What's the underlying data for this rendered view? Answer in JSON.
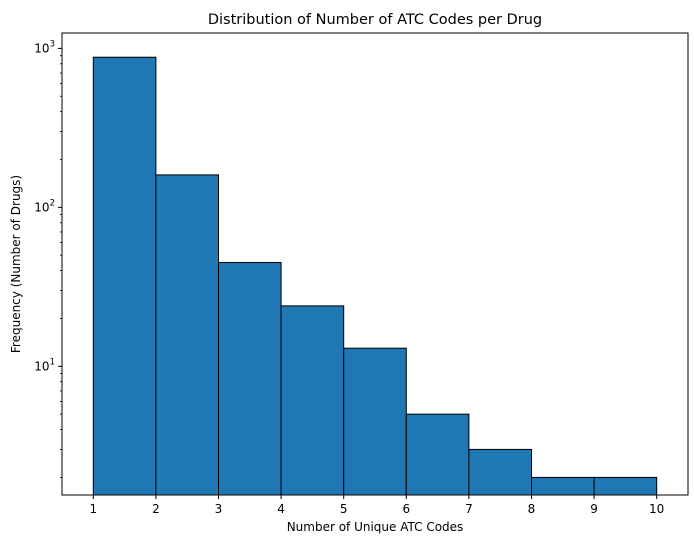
{
  "chart_data": {
    "type": "bar",
    "subtype": "histogram",
    "title": "Distribution of Number of ATC Codes per Drug",
    "xlabel": "Number of Unique ATC Codes",
    "ylabel": "Frequency (Number of Drugs)",
    "yscale": "log",
    "ylim": [
      1.55,
      1250
    ],
    "xlim": [
      0.5,
      10.5
    ],
    "x_ticks": [
      "1",
      "2",
      "3",
      "4",
      "5",
      "6",
      "7",
      "8",
      "9",
      "10"
    ],
    "y_ticks": [
      {
        "base": "10",
        "exp": "1",
        "value": 10
      },
      {
        "base": "10",
        "exp": "2",
        "value": 100
      },
      {
        "base": "10",
        "exp": "3",
        "value": 1000
      }
    ],
    "bins": [
      {
        "start": 1,
        "end": 2,
        "value": 880
      },
      {
        "start": 2,
        "end": 3,
        "value": 160
      },
      {
        "start": 3,
        "end": 4,
        "value": 45
      },
      {
        "start": 4,
        "end": 5,
        "value": 24
      },
      {
        "start": 5,
        "end": 6,
        "value": 13
      },
      {
        "start": 6,
        "end": 7,
        "value": 5
      },
      {
        "start": 7,
        "end": 8,
        "value": 3
      },
      {
        "start": 8,
        "end": 9,
        "value": 2
      },
      {
        "start": 9,
        "end": 10,
        "value": 2
      }
    ],
    "bar_color": "#1f77b4",
    "edge_color": "#000000",
    "grid": false
  }
}
